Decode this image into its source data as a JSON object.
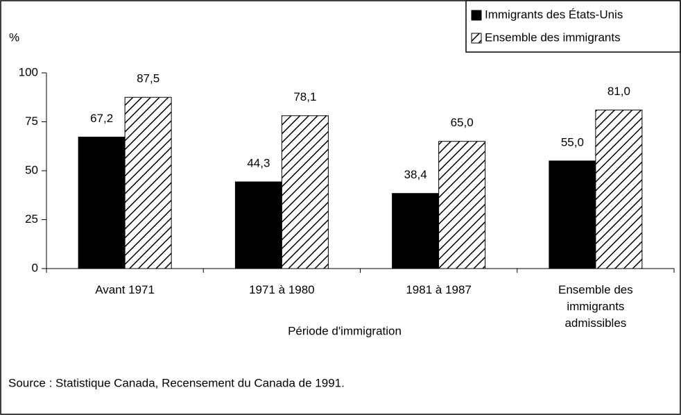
{
  "chart_data": {
    "type": "bar",
    "y_label": "%",
    "x_label": "Période d'immigration",
    "source": "Source : Statistique Canada, Recensement du Canada de 1991.",
    "categories": [
      "Avant 1971",
      "1971 à 1980",
      "1981 à 1987",
      "Ensemble des immigrants admissibles"
    ],
    "series": [
      {
        "name": "Immigrants des États-Unis",
        "color": "#000000",
        "pattern": "solid",
        "values": [
          67.2,
          44.3,
          38.4,
          55.0
        ],
        "value_labels": [
          "67,2",
          "44,3",
          "38,4",
          "55,0"
        ]
      },
      {
        "name": "Ensemble des immigrants",
        "color": "#000000",
        "pattern": "hatch",
        "values": [
          87.5,
          78.1,
          65.0,
          81.0
        ],
        "value_labels": [
          "87,5",
          "78,1",
          "65,0",
          "81,0"
        ]
      }
    ],
    "ylim": [
      0,
      100
    ],
    "yticks": [
      0,
      25,
      50,
      75,
      100
    ],
    "grid": false,
    "legend": "top-right"
  }
}
